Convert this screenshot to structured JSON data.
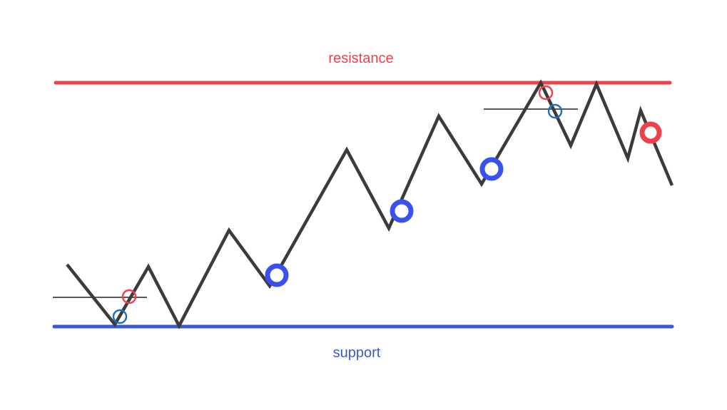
{
  "labels": {
    "resistance": "resistance",
    "support": "support"
  },
  "colors": {
    "resistance": "#ee4149",
    "support": "#3d58d6",
    "price": "#3b3b3b",
    "marker_blue": "#3b50f0",
    "marker_red": "#ee4149",
    "small_blue": "#1f6fb8",
    "small_red": "#ee4149",
    "reference_line": "#222222"
  }
}
